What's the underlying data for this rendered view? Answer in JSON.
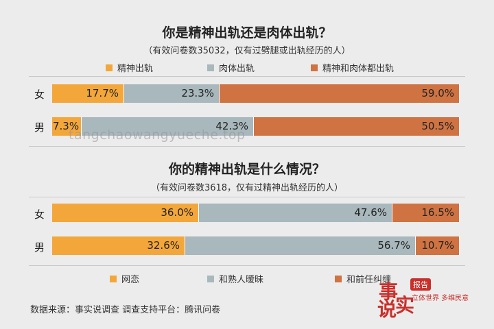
{
  "chart_data": [
    {
      "type": "bar",
      "stacked": true,
      "orientation": "horizontal",
      "title": "你是精神出轨还是肉体出轨？",
      "subtitle": "（有效问卷数35032，仅有过劈腿或出轨经历的人）",
      "categories": [
        "女",
        "男"
      ],
      "series": [
        {
          "name": "精神出轨",
          "color": "#f3a73b",
          "values": [
            17.7,
            7.3
          ],
          "labels": [
            "17.7%",
            "7.3%"
          ]
        },
        {
          "name": "肉体出轨",
          "color": "#a8b8bd",
          "values": [
            23.3,
            42.3
          ],
          "labels": [
            "23.3%",
            "42.3%"
          ]
        },
        {
          "name": "精神和肉体都出轨",
          "color": "#cf7343",
          "values": [
            59.0,
            50.5
          ],
          "labels": [
            "59.0%",
            "50.5%"
          ]
        }
      ],
      "xlim": [
        0,
        100
      ],
      "legend": "top"
    },
    {
      "type": "bar",
      "stacked": true,
      "orientation": "horizontal",
      "title": "你的精神出轨是什么情况？",
      "subtitle": "（有效问卷数3618，仅有过精神出轨经历的人）",
      "categories": [
        "女",
        "男"
      ],
      "series": [
        {
          "name": "网恋",
          "color": "#f3a73b",
          "values": [
            36.0,
            32.6
          ],
          "labels": [
            "36.0%",
            "32.6%"
          ]
        },
        {
          "name": "和熟人暧昧",
          "color": "#a8b8bd",
          "values": [
            47.6,
            56.7
          ],
          "labels": [
            "47.6%",
            "56.7%"
          ]
        },
        {
          "name": "和前任纠缠",
          "color": "#cf7343",
          "values": [
            16.5,
            10.7
          ],
          "labels": [
            "16.5%",
            "10.7%"
          ]
        }
      ],
      "xlim": [
        0,
        100
      ],
      "legend": "bottom"
    }
  ],
  "watermark": "tangchaowangyueche.top",
  "footer": "数据来源：事实说调查  调查支持平台：腾讯问卷",
  "logo": {
    "big": "事实说",
    "tag": "报告",
    "slogan": "立体世界 多维民意"
  }
}
